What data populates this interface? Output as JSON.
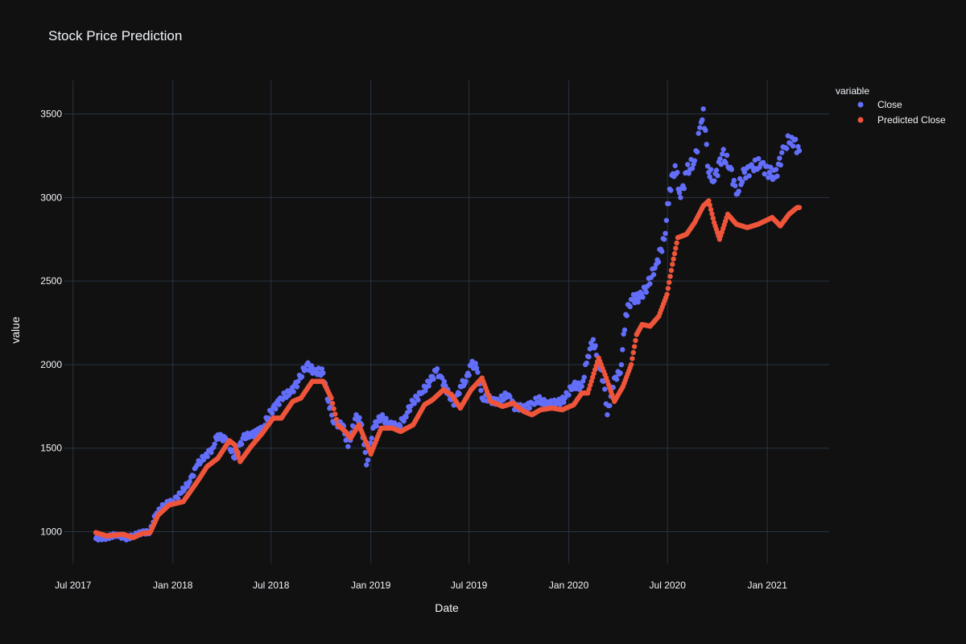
{
  "chart_data": {
    "type": "scatter",
    "title": "Stock Price Prediction",
    "xlabel": "Date",
    "ylabel": "value",
    "x_range": [
      "2017-06-15",
      "2021-04-25"
    ],
    "ylim": [
      810,
      3700
    ],
    "x_ticks": [
      {
        "date": "2017-07-01",
        "label": "Jul 2017"
      },
      {
        "date": "2018-01-01",
        "label": "Jan 2018"
      },
      {
        "date": "2018-07-01",
        "label": "Jul 2018"
      },
      {
        "date": "2019-01-01",
        "label": "Jan 2019"
      },
      {
        "date": "2019-07-01",
        "label": "Jul 2019"
      },
      {
        "date": "2020-01-01",
        "label": "Jan 2020"
      },
      {
        "date": "2020-07-01",
        "label": "Jul 2020"
      },
      {
        "date": "2021-01-01",
        "label": "Jan 2021"
      }
    ],
    "y_ticks": [
      1000,
      1500,
      2000,
      2500,
      3000,
      3500
    ],
    "grid": true,
    "legend": {
      "title": "variable",
      "position": "right"
    },
    "series": [
      {
        "name": "Close",
        "color": "#636efa",
        "points": [
          [
            "2017-08-12",
            960
          ],
          [
            "2017-09-01",
            965
          ],
          [
            "2017-09-20",
            985
          ],
          [
            "2017-10-05",
            960
          ],
          [
            "2017-10-20",
            975
          ],
          [
            "2017-11-05",
            995
          ],
          [
            "2017-11-20",
            1000
          ],
          [
            "2017-11-30",
            1100
          ],
          [
            "2017-12-15",
            1160
          ],
          [
            "2018-01-01",
            1180
          ],
          [
            "2018-01-15",
            1230
          ],
          [
            "2018-02-01",
            1300
          ],
          [
            "2018-02-15",
            1400
          ],
          [
            "2018-03-01",
            1450
          ],
          [
            "2018-03-15",
            1500
          ],
          [
            "2018-03-25",
            1580
          ],
          [
            "2018-04-10",
            1550
          ],
          [
            "2018-04-25",
            1440
          ],
          [
            "2018-05-10",
            1560
          ],
          [
            "2018-05-25",
            1580
          ],
          [
            "2018-06-15",
            1620
          ],
          [
            "2018-07-01",
            1720
          ],
          [
            "2018-07-20",
            1800
          ],
          [
            "2018-08-05",
            1830
          ],
          [
            "2018-08-20",
            1900
          ],
          [
            "2018-09-05",
            2000
          ],
          [
            "2018-09-20",
            1960
          ],
          [
            "2018-10-05",
            1950
          ],
          [
            "2018-10-15",
            1780
          ],
          [
            "2018-10-25",
            1650
          ],
          [
            "2018-11-10",
            1640
          ],
          [
            "2018-11-20",
            1510
          ],
          [
            "2018-12-05",
            1700
          ],
          [
            "2018-12-15",
            1640
          ],
          [
            "2018-12-24",
            1400
          ],
          [
            "2019-01-05",
            1620
          ],
          [
            "2019-01-20",
            1690
          ],
          [
            "2019-02-05",
            1640
          ],
          [
            "2019-02-20",
            1630
          ],
          [
            "2019-03-05",
            1690
          ],
          [
            "2019-03-20",
            1780
          ],
          [
            "2019-04-05",
            1830
          ],
          [
            "2019-04-20",
            1900
          ],
          [
            "2019-05-01",
            1960
          ],
          [
            "2019-05-10",
            1930
          ],
          [
            "2019-05-25",
            1820
          ],
          [
            "2019-06-05",
            1760
          ],
          [
            "2019-06-15",
            1870
          ],
          [
            "2019-06-25",
            1900
          ],
          [
            "2019-07-05",
            2000
          ],
          [
            "2019-07-15",
            1980
          ],
          [
            "2019-07-25",
            1800
          ],
          [
            "2019-08-10",
            1790
          ],
          [
            "2019-08-25",
            1780
          ],
          [
            "2019-09-10",
            1820
          ],
          [
            "2019-09-25",
            1740
          ],
          [
            "2019-10-10",
            1740
          ],
          [
            "2019-10-25",
            1770
          ],
          [
            "2019-11-10",
            1790
          ],
          [
            "2019-11-25",
            1760
          ],
          [
            "2019-12-10",
            1770
          ],
          [
            "2019-12-25",
            1800
          ],
          [
            "2020-01-10",
            1880
          ],
          [
            "2020-01-25",
            1870
          ],
          [
            "2020-02-05",
            2050
          ],
          [
            "2020-02-15",
            2150
          ],
          [
            "2020-02-25",
            2000
          ],
          [
            "2020-03-05",
            1900
          ],
          [
            "2020-03-12",
            1700
          ],
          [
            "2020-03-25",
            1920
          ],
          [
            "2020-04-05",
            1950
          ],
          [
            "2020-04-15",
            2300
          ],
          [
            "2020-04-25",
            2390
          ],
          [
            "2020-05-10",
            2400
          ],
          [
            "2020-05-25",
            2470
          ],
          [
            "2020-06-10",
            2600
          ],
          [
            "2020-06-25",
            2750
          ],
          [
            "2020-07-05",
            3050
          ],
          [
            "2020-07-15",
            3190
          ],
          [
            "2020-07-25",
            3000
          ],
          [
            "2020-08-05",
            3150
          ],
          [
            "2020-08-20",
            3220
          ],
          [
            "2020-09-01",
            3450
          ],
          [
            "2020-09-05",
            3530
          ],
          [
            "2020-09-15",
            3150
          ],
          [
            "2020-09-25",
            3100
          ],
          [
            "2020-10-10",
            3260
          ],
          [
            "2020-10-25",
            3180
          ],
          [
            "2020-11-05",
            3020
          ],
          [
            "2020-11-20",
            3150
          ],
          [
            "2020-12-05",
            3180
          ],
          [
            "2020-12-20",
            3200
          ],
          [
            "2021-01-05",
            3150
          ],
          [
            "2021-01-15",
            3120
          ],
          [
            "2021-02-01",
            3300
          ],
          [
            "2021-02-15",
            3360
          ],
          [
            "2021-03-01",
            3280
          ]
        ]
      },
      {
        "name": "Predicted Close",
        "color": "#ef553b",
        "points": [
          [
            "2017-08-12",
            995
          ],
          [
            "2017-09-01",
            975
          ],
          [
            "2017-10-01",
            985
          ],
          [
            "2017-10-20",
            965
          ],
          [
            "2017-11-05",
            990
          ],
          [
            "2017-11-20",
            995
          ],
          [
            "2017-12-05",
            1100
          ],
          [
            "2017-12-25",
            1160
          ],
          [
            "2018-01-20",
            1180
          ],
          [
            "2018-02-15",
            1300
          ],
          [
            "2018-03-05",
            1390
          ],
          [
            "2018-03-25",
            1440
          ],
          [
            "2018-04-15",
            1545
          ],
          [
            "2018-04-25",
            1520
          ],
          [
            "2018-05-05",
            1420
          ],
          [
            "2018-05-25",
            1510
          ],
          [
            "2018-06-15",
            1590
          ],
          [
            "2018-07-05",
            1680
          ],
          [
            "2018-07-20",
            1680
          ],
          [
            "2018-08-10",
            1780
          ],
          [
            "2018-08-25",
            1800
          ],
          [
            "2018-09-15",
            1900
          ],
          [
            "2018-10-05",
            1900
          ],
          [
            "2018-10-20",
            1800
          ],
          [
            "2018-11-01",
            1640
          ],
          [
            "2018-11-15",
            1600
          ],
          [
            "2018-11-25",
            1560
          ],
          [
            "2018-12-10",
            1640
          ],
          [
            "2018-12-20",
            1560
          ],
          [
            "2019-01-01",
            1465
          ],
          [
            "2019-01-20",
            1620
          ],
          [
            "2019-02-10",
            1620
          ],
          [
            "2019-02-25",
            1600
          ],
          [
            "2019-03-20",
            1640
          ],
          [
            "2019-04-10",
            1760
          ],
          [
            "2019-04-25",
            1790
          ],
          [
            "2019-05-15",
            1850
          ],
          [
            "2019-05-30",
            1820
          ],
          [
            "2019-06-15",
            1740
          ],
          [
            "2019-07-05",
            1850
          ],
          [
            "2019-07-25",
            1920
          ],
          [
            "2019-08-10",
            1780
          ],
          [
            "2019-09-01",
            1750
          ],
          [
            "2019-09-20",
            1770
          ],
          [
            "2019-10-10",
            1720
          ],
          [
            "2019-10-25",
            1700
          ],
          [
            "2019-11-10",
            1730
          ],
          [
            "2019-12-01",
            1740
          ],
          [
            "2019-12-20",
            1730
          ],
          [
            "2020-01-10",
            1760
          ],
          [
            "2020-01-25",
            1830
          ],
          [
            "2020-02-05",
            1830
          ],
          [
            "2020-02-25",
            2040
          ],
          [
            "2020-03-10",
            1920
          ],
          [
            "2020-03-25",
            1780
          ],
          [
            "2020-04-10",
            1870
          ],
          [
            "2020-04-25",
            2000
          ],
          [
            "2020-05-05",
            2180
          ],
          [
            "2020-05-15",
            2240
          ],
          [
            "2020-05-30",
            2230
          ],
          [
            "2020-06-15",
            2290
          ],
          [
            "2020-06-30",
            2420
          ],
          [
            "2020-07-10",
            2600
          ],
          [
            "2020-07-20",
            2760
          ],
          [
            "2020-08-05",
            2780
          ],
          [
            "2020-08-20",
            2850
          ],
          [
            "2020-09-05",
            2950
          ],
          [
            "2020-09-15",
            2980
          ],
          [
            "2020-09-25",
            2850
          ],
          [
            "2020-10-05",
            2750
          ],
          [
            "2020-10-20",
            2900
          ],
          [
            "2020-11-05",
            2840
          ],
          [
            "2020-11-25",
            2820
          ],
          [
            "2020-12-15",
            2840
          ],
          [
            "2021-01-10",
            2880
          ],
          [
            "2021-01-25",
            2830
          ],
          [
            "2021-02-10",
            2900
          ],
          [
            "2021-02-25",
            2940
          ],
          [
            "2021-03-01",
            2940
          ]
        ]
      }
    ]
  }
}
